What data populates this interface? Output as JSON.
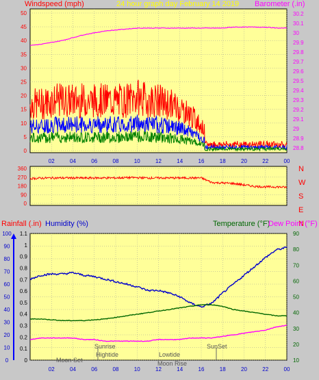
{
  "title": "24 hour graph day   February 14 2019",
  "x_ticks": [
    "02",
    "04",
    "06",
    "08",
    "10",
    "12",
    "14",
    "16",
    "18",
    "20",
    "22",
    "00"
  ],
  "top_chart": {
    "left_label": "Windspeed (mph)",
    "right_label": "Barometer (.in)",
    "left_ticks": [
      "0",
      "5",
      "10",
      "15",
      "20",
      "25",
      "30",
      "35",
      "40",
      "45",
      "50"
    ],
    "right_ticks": [
      "28.8",
      "28.9",
      "29",
      "29.1",
      "29.2",
      "29.3",
      "29.4",
      "29.5",
      "29.6",
      "29.7",
      "29.8",
      "29.9",
      "30",
      "30.1",
      "30.2"
    ]
  },
  "dir_chart": {
    "left_ticks": [
      "0",
      "90",
      "180",
      "270",
      "360"
    ],
    "compass": [
      "N",
      "W",
      "S",
      "E",
      "N"
    ]
  },
  "bottom_chart": {
    "rainfall_label": "Rainfall (.in)",
    "humidity_label": "Humidity (%)",
    "temperature_label": "Temperature (°F)",
    "dewpoint_label": "Dew Point (°F)",
    "humidity_ticks": [
      "0",
      "10",
      "20",
      "30",
      "40",
      "50",
      "60",
      "70",
      "80",
      "90",
      "100"
    ],
    "rainfall_ticks": [
      "0",
      "0.1",
      "0.2",
      "0.3",
      "0.4",
      "0.5",
      "0.6",
      "0.7",
      "0.8",
      "0.9",
      "1",
      "1.1"
    ],
    "temp_ticks": [
      "10",
      "20",
      "30",
      "40",
      "50",
      "60",
      "70",
      "80",
      "90"
    ]
  },
  "annotations": [
    "Moon Set",
    "Sunrise",
    "Hightide",
    "Lowtide",
    "Moon Rise",
    "SunSet"
  ],
  "colors": {
    "plot_bg": "#ffff99",
    "panel_bg": "#c8c8c8",
    "wind_gust": "#ff0000",
    "wind_avg": "#0000ff",
    "wind_low": "#008000",
    "barometer": "#ff00ff",
    "direction": "#ff0000",
    "humidity": "#0000cc",
    "temperature": "#006600",
    "dewpoint": "#ff00ff"
  },
  "chart_data": [
    {
      "type": "line",
      "x_hours": [
        0,
        1,
        2,
        3,
        4,
        5,
        6,
        7,
        8,
        9,
        10,
        11,
        12,
        13,
        14,
        15,
        16,
        17,
        18,
        19,
        20,
        21,
        22,
        23,
        24
      ],
      "series": [
        {
          "name": "Windspeed (mph)",
          "axis": "left",
          "values": [
            13,
            13,
            14,
            14,
            14,
            14,
            14,
            14,
            14,
            14,
            15,
            14,
            14,
            13,
            12,
            10,
            7,
            2,
            2,
            2,
            2,
            2,
            2,
            2,
            2
          ]
        },
        {
          "name": "Barometer (.in)",
          "axis": "right",
          "values": [
            29.87,
            29.88,
            29.9,
            29.92,
            29.95,
            29.98,
            30.0,
            30.02,
            30.03,
            30.04,
            30.05,
            30.05,
            30.05,
            30.05,
            30.05,
            30.05,
            30.05,
            30.05,
            30.05,
            30.06,
            30.06,
            30.06,
            30.06,
            30.05,
            30.05
          ]
        }
      ],
      "ylim_left": [
        0,
        50
      ],
      "ylim_right": [
        28.75,
        30.25
      ]
    },
    {
      "type": "line",
      "x_hours": [
        0,
        1,
        2,
        3,
        4,
        5,
        6,
        7,
        8,
        9,
        10,
        11,
        12,
        13,
        14,
        15,
        16,
        17,
        18,
        19,
        20,
        21,
        22,
        23,
        24
      ],
      "series": [
        {
          "name": "Wind direction",
          "values": [
            255,
            260,
            262,
            262,
            262,
            260,
            262,
            262,
            262,
            265,
            265,
            262,
            262,
            262,
            262,
            262,
            262,
            215,
            210,
            205,
            190,
            175,
            170,
            170,
            165
          ]
        }
      ],
      "ylim": [
        0,
        360
      ]
    },
    {
      "type": "line",
      "x_hours": [
        0,
        1,
        2,
        3,
        4,
        5,
        6,
        7,
        8,
        9,
        10,
        11,
        12,
        13,
        14,
        15,
        16,
        17,
        18,
        19,
        20,
        21,
        22,
        23,
        24
      ],
      "series": [
        {
          "name": "Humidity (%)",
          "axis": "humidity",
          "values": [
            64,
            67,
            68,
            68,
            69,
            67,
            66,
            64,
            62,
            60,
            58,
            55,
            55,
            53,
            50,
            45,
            42,
            45,
            53,
            60,
            67,
            74,
            81,
            87,
            89
          ]
        },
        {
          "name": "Temperature (°F)",
          "axis": "temperature",
          "values": [
            36,
            36,
            35.5,
            35,
            35,
            35,
            35.5,
            36,
            37,
            38,
            39,
            40,
            41,
            42,
            43,
            44,
            45,
            45,
            44,
            42,
            41,
            40,
            39,
            38,
            38
          ]
        },
        {
          "name": "Dew Point (°F)",
          "axis": "temperature",
          "values": [
            23,
            24,
            24,
            24,
            24,
            23,
            23,
            22,
            22,
            22,
            22,
            22,
            23,
            23,
            23,
            24,
            24,
            24,
            25,
            26,
            27,
            28,
            29,
            31,
            32
          ]
        }
      ],
      "ylim_humidity": [
        0,
        100
      ],
      "ylim_rainfall": [
        0,
        1.1
      ],
      "ylim_temperature": [
        10,
        90
      ]
    }
  ]
}
